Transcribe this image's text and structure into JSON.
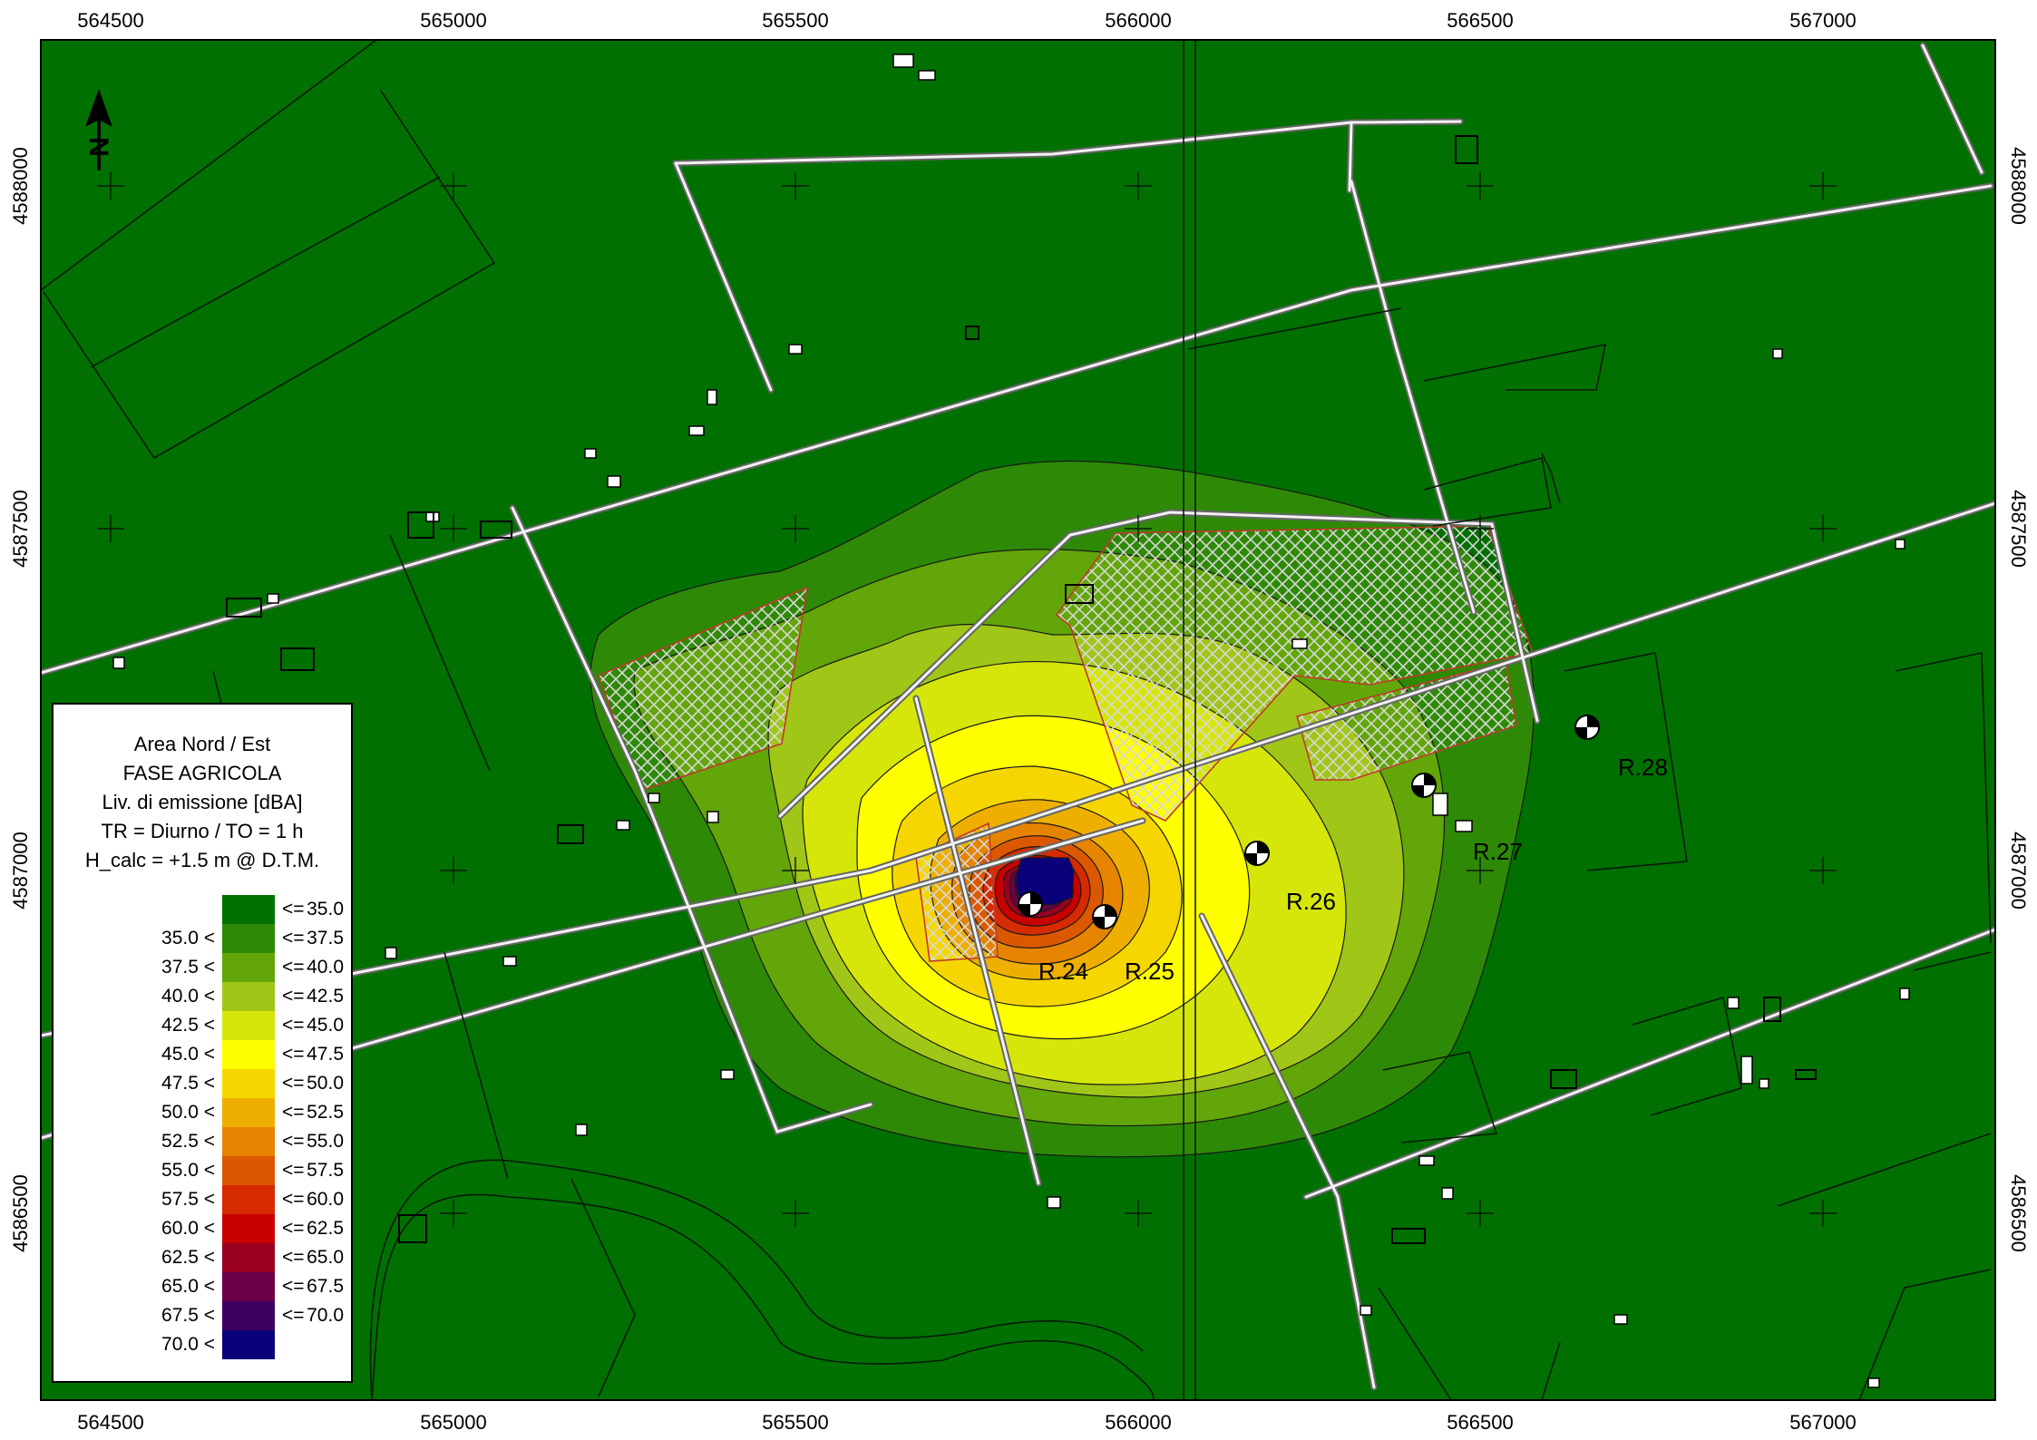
{
  "axes": {
    "x_ticks": [
      "564500",
      "565000",
      "565500",
      "566000",
      "566500",
      "567000"
    ],
    "y_ticks": [
      "4588000",
      "4587500",
      "4587000",
      "4586500"
    ]
  },
  "legend": {
    "title_lines": [
      "Area Nord / Est",
      "FASE AGRICOLA",
      "Liv. di emissione [dBA]",
      "TR = Diurno /  TO = 1 h",
      "H_calc = +1.5 m @ D.T.M."
    ],
    "rows": [
      {
        "low": "",
        "le": "<=",
        "high": "35.0",
        "color": "#007000"
      },
      {
        "low": "35.0 <",
        "le": "<=",
        "high": "37.5",
        "color": "#2e8a06"
      },
      {
        "low": "37.5 <",
        "le": "<=",
        "high": "40.0",
        "color": "#62a60a"
      },
      {
        "low": "40.0 <",
        "le": "<=",
        "high": "42.5",
        "color": "#a0c618"
      },
      {
        "low": "42.5 <",
        "le": "<=",
        "high": "45.0",
        "color": "#d6e60a"
      },
      {
        "low": "45.0 <",
        "le": "<=",
        "high": "47.5",
        "color": "#ffff00"
      },
      {
        "low": "47.5 <",
        "le": "<=",
        "high": "50.0",
        "color": "#f6d600"
      },
      {
        "low": "50.0 <",
        "le": "<=",
        "high": "52.5",
        "color": "#eeaf00"
      },
      {
        "low": "52.5 <",
        "le": "<=",
        "high": "55.0",
        "color": "#e68400"
      },
      {
        "low": "55.0 <",
        "le": "<=",
        "high": "57.5",
        "color": "#dc5800"
      },
      {
        "low": "57.5 <",
        "le": "<=",
        "high": "60.0",
        "color": "#d62a00"
      },
      {
        "low": "60.0 <",
        "le": "<=",
        "high": "62.5",
        "color": "#c80000"
      },
      {
        "low": "62.5 <",
        "le": "<=",
        "high": "65.0",
        "color": "#9a0020"
      },
      {
        "low": "65.0 <",
        "le": "<=",
        "high": "67.5",
        "color": "#6a0046"
      },
      {
        "low": "67.5 <",
        "le": "<=",
        "high": "70.0",
        "color": "#3e0060"
      },
      {
        "low": "70.0 <",
        "le": "",
        "high": "",
        "color": "#0a007a"
      }
    ]
  },
  "receivers": [
    {
      "id": "r24",
      "label": "R.24"
    },
    {
      "id": "r25",
      "label": "R.25"
    },
    {
      "id": "r26",
      "label": "R.26"
    },
    {
      "id": "r27",
      "label": "R.27"
    },
    {
      "id": "r28",
      "label": "R.28"
    }
  ],
  "north_arrow": {
    "symbol": "N"
  }
}
